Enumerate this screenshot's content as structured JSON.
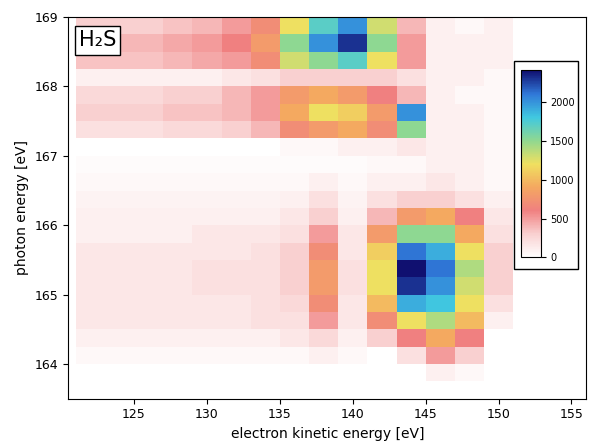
{
  "chart_data": {
    "type": "heatmap",
    "title": "H₂S",
    "x_label": "electron kinetic energy [eV]",
    "y_label": "photon energy [eV]",
    "xlim": [
      120.5,
      156
    ],
    "ylim": [
      163.5,
      169
    ],
    "xticks": [
      125,
      130,
      135,
      140,
      145,
      150,
      155
    ],
    "yticks": [
      164,
      165,
      166,
      167,
      168,
      169
    ],
    "x_edges": [
      121,
      123,
      125,
      127,
      129,
      131,
      133,
      135,
      137,
      139,
      141,
      143,
      145,
      147,
      149,
      151,
      153,
      155
    ],
    "y_edges": [
      163.5,
      163.75,
      164.0,
      164.25,
      164.5,
      164.75,
      165.0,
      165.25,
      165.5,
      165.75,
      166.0,
      166.25,
      166.5,
      166.75,
      167.0,
      167.25,
      167.5,
      167.75,
      168.0,
      168.25,
      168.5,
      168.75,
      169.0
    ],
    "cells": [
      [
        0,
        0,
        0,
        0,
        0,
        0,
        0,
        0,
        0,
        0,
        0,
        0,
        0,
        0,
        0,
        0,
        0
      ],
      [
        0,
        0,
        0,
        0,
        0,
        0,
        0,
        0,
        0,
        0,
        0,
        0,
        100,
        50,
        0,
        0,
        0
      ],
      [
        50,
        50,
        50,
        50,
        50,
        50,
        50,
        50,
        100,
        50,
        0,
        200,
        500,
        300,
        0,
        0,
        0
      ],
      [
        100,
        100,
        100,
        100,
        100,
        100,
        100,
        150,
        250,
        100,
        300,
        600,
        900,
        600,
        0,
        0,
        0
      ],
      [
        150,
        150,
        150,
        150,
        150,
        150,
        200,
        200,
        500,
        150,
        700,
        1200,
        1400,
        1000,
        100,
        0,
        0
      ],
      [
        150,
        150,
        150,
        150,
        150,
        150,
        200,
        250,
        700,
        150,
        1000,
        1900,
        1800,
        1200,
        200,
        0,
        0
      ],
      [
        150,
        150,
        150,
        150,
        200,
        200,
        200,
        300,
        800,
        200,
        1200,
        2300,
        2000,
        1300,
        300,
        0,
        0
      ],
      [
        150,
        150,
        150,
        150,
        200,
        200,
        200,
        300,
        800,
        200,
        1200,
        2400,
        2100,
        1400,
        300,
        0,
        0
      ],
      [
        150,
        150,
        150,
        150,
        150,
        150,
        200,
        300,
        700,
        150,
        1100,
        2100,
        1900,
        1200,
        300,
        0,
        0
      ],
      [
        100,
        100,
        100,
        100,
        150,
        150,
        150,
        200,
        500,
        150,
        800,
        1500,
        1500,
        900,
        200,
        0,
        0
      ],
      [
        100,
        100,
        100,
        100,
        100,
        100,
        100,
        150,
        300,
        100,
        400,
        800,
        900,
        600,
        150,
        0,
        0
      ],
      [
        80,
        80,
        80,
        80,
        80,
        80,
        80,
        100,
        200,
        80,
        200,
        300,
        300,
        200,
        100,
        0,
        0
      ],
      [
        50,
        50,
        50,
        50,
        50,
        50,
        50,
        50,
        100,
        50,
        100,
        100,
        150,
        100,
        50,
        0,
        0
      ],
      [
        30,
        30,
        30,
        30,
        30,
        30,
        30,
        30,
        30,
        30,
        50,
        50,
        100,
        100,
        50,
        0,
        0
      ],
      [
        0,
        0,
        0,
        0,
        0,
        0,
        0,
        50,
        50,
        100,
        100,
        150,
        100,
        100,
        50,
        0,
        0
      ],
      [
        200,
        200,
        200,
        250,
        250,
        300,
        400,
        700,
        800,
        900,
        700,
        1500,
        100,
        100,
        50,
        0,
        0
      ],
      [
        300,
        300,
        300,
        350,
        350,
        400,
        500,
        900,
        1200,
        1100,
        800,
        2000,
        100,
        100,
        50,
        0,
        0
      ],
      [
        250,
        250,
        250,
        300,
        300,
        400,
        500,
        800,
        900,
        800,
        600,
        400,
        100,
        50,
        50,
        0,
        0
      ],
      [
        100,
        100,
        100,
        100,
        100,
        150,
        200,
        300,
        300,
        300,
        300,
        200,
        100,
        100,
        50,
        0,
        0
      ],
      [
        350,
        350,
        350,
        400,
        450,
        500,
        700,
        1300,
        1500,
        1700,
        1200,
        500,
        100,
        100,
        100,
        0,
        0
      ],
      [
        400,
        400,
        400,
        450,
        500,
        600,
        800,
        1500,
        2000,
        2300,
        1500,
        500,
        100,
        100,
        100,
        0,
        0
      ],
      [
        300,
        300,
        300,
        350,
        400,
        500,
        700,
        1200,
        1700,
        2000,
        1300,
        400,
        100,
        50,
        100,
        0,
        0
      ]
    ],
    "colorbar_range": [
      0,
      2400
    ],
    "colorbar_ticks": [
      0,
      500,
      1000,
      1500,
      2000
    ]
  }
}
